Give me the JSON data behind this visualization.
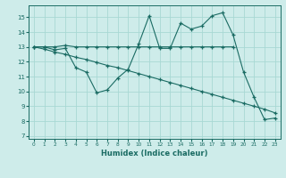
{
  "bg_color": "#ceecea",
  "grid_color": "#a8d8d4",
  "line_color": "#1a6b63",
  "xlabel": "Humidex (Indice chaleur)",
  "xlim": [
    -0.5,
    23.5
  ],
  "ylim": [
    6.8,
    15.8
  ],
  "yticks": [
    7,
    8,
    9,
    10,
    11,
    12,
    13,
    14,
    15
  ],
  "xticks": [
    0,
    1,
    2,
    3,
    4,
    5,
    6,
    7,
    8,
    9,
    10,
    11,
    12,
    13,
    14,
    15,
    16,
    17,
    18,
    19,
    20,
    21,
    22,
    23
  ],
  "line_flat_x": [
    0,
    1,
    2,
    3,
    4,
    5,
    6,
    7,
    8,
    9,
    10,
    11,
    12,
    13,
    14,
    15,
    16,
    17,
    18,
    19
  ],
  "line_flat_y": [
    13.0,
    13.0,
    13.0,
    13.1,
    13.0,
    13.0,
    13.0,
    13.0,
    13.0,
    13.0,
    13.0,
    13.0,
    13.0,
    13.0,
    13.0,
    13.0,
    13.0,
    13.0,
    13.0,
    13.0
  ],
  "line_wavy_x": [
    0,
    1,
    2,
    3,
    4,
    5,
    6,
    7,
    8,
    9,
    10,
    11,
    12,
    13,
    14,
    15,
    16,
    17,
    18,
    19,
    20,
    21,
    22,
    23
  ],
  "line_wavy_y": [
    13.0,
    13.0,
    12.8,
    12.9,
    11.6,
    11.3,
    9.9,
    10.1,
    10.9,
    11.5,
    13.2,
    15.1,
    12.9,
    12.9,
    14.6,
    14.2,
    14.4,
    15.1,
    15.3,
    13.8,
    11.3,
    9.6,
    8.1,
    8.2
  ],
  "line_diag_x": [
    0,
    1,
    2,
    3,
    4,
    5,
    6,
    7,
    8,
    9,
    10,
    11,
    12,
    13,
    14,
    15,
    16,
    17,
    18,
    19,
    20,
    21,
    22,
    23
  ],
  "line_diag_y": [
    13.0,
    12.85,
    12.65,
    12.5,
    12.3,
    12.15,
    11.95,
    11.75,
    11.6,
    11.4,
    11.2,
    11.0,
    10.8,
    10.6,
    10.4,
    10.2,
    10.0,
    9.8,
    9.6,
    9.4,
    9.2,
    9.0,
    8.8,
    8.55
  ]
}
